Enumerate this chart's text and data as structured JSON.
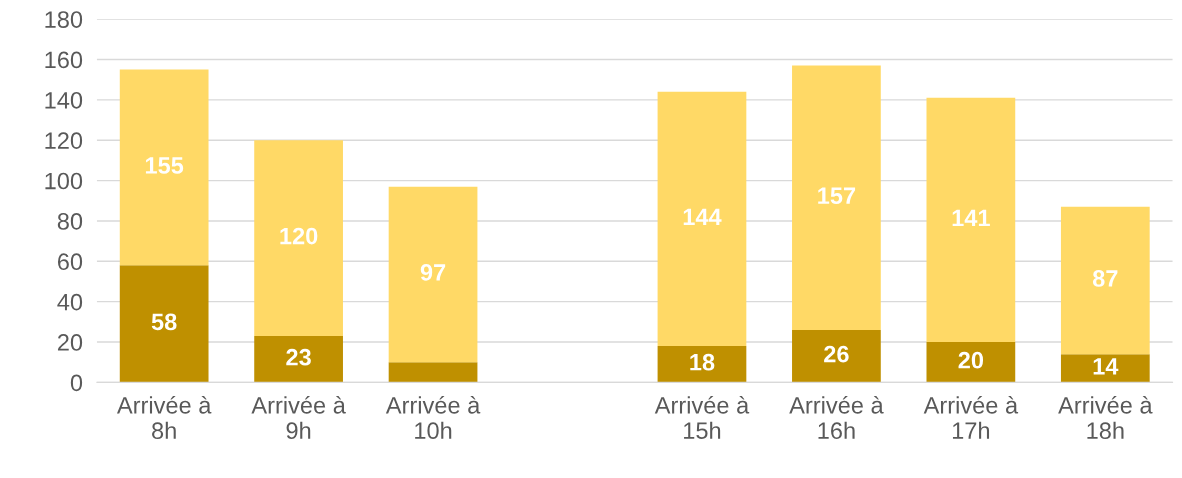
{
  "chart_data": {
    "type": "bar",
    "stacked": true,
    "totals": [
      "155",
      "120",
      "97",
      null,
      "144",
      "157",
      "141",
      "87"
    ],
    "categories": [
      "Arrivée à 8h",
      "Arrivée à 9h",
      "Arrivée à 10h",
      null,
      "Arrivée à 15h",
      "Arrivée à 16h",
      "Arrivée à 17h",
      "Arrivée à 18h"
    ],
    "series": [
      {
        "color": "#bf9000",
        "values": [
          58,
          23,
          10,
          null,
          18,
          26,
          20,
          14
        ],
        "value_labels": [
          "58",
          "23",
          null,
          null,
          "18",
          "26",
          "20",
          "14"
        ]
      },
      {
        "color": "#ffd966",
        "values": [
          97,
          97,
          87,
          null,
          126,
          131,
          121,
          73
        ]
      }
    ],
    "ylim": [
      0,
      180
    ],
    "yticks": [
      0,
      20,
      40,
      60,
      80,
      100,
      120,
      140,
      160,
      180
    ],
    "grid": "y",
    "legend": false
  }
}
